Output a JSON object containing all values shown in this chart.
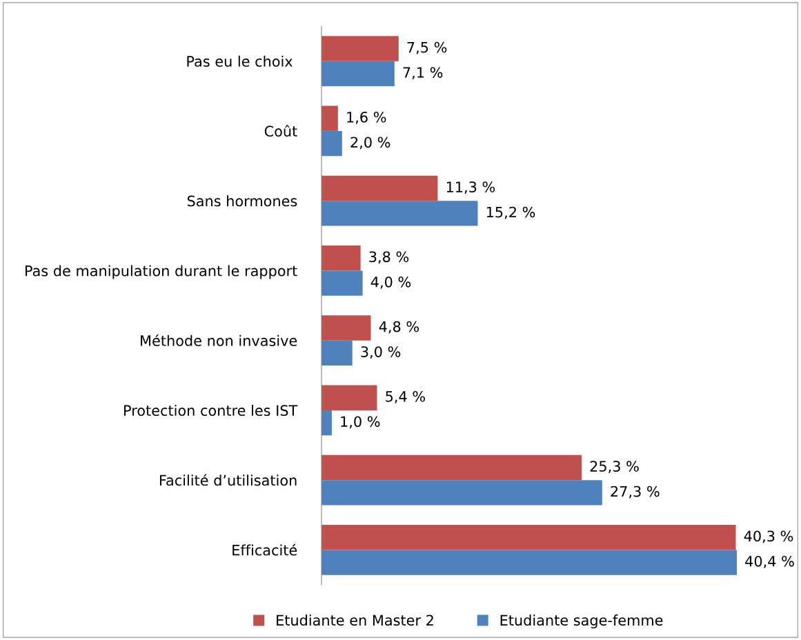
{
  "chart_data": {
    "type": "bar",
    "orientation": "horizontal",
    "categories": [
      "Pas eu le choix ",
      "Coût",
      "Sans hormones",
      "Pas de manipulation durant le rapport",
      "Méthode non invasive",
      "Protection contre les IST",
      "Facilité d’utilisation",
      "Efficacité"
    ],
    "xlim": [
      0,
      40.4
    ],
    "series": [
      {
        "name": "Etudiante en Master 2",
        "color": "#c0504d",
        "values": [
          7.5,
          1.6,
          11.3,
          3.8,
          4.8,
          5.4,
          25.3,
          40.3
        ],
        "value_labels": [
          "7,5 %",
          "1,6 %",
          "11,3 %",
          "3,8 %",
          "4,8 %",
          "5,4 %",
          "25,3 %",
          "40,3 %"
        ]
      },
      {
        "name": "Etudiante sage-femme",
        "color": "#4f81bd",
        "values": [
          7.1,
          2.0,
          15.2,
          4.0,
          3.0,
          1.0,
          27.3,
          40.4
        ],
        "value_labels": [
          "7,1 %",
          "2,0 %",
          "15,2 %",
          "4,0 %",
          "3,0 %",
          "1,0 %",
          "27,3 %",
          "40,4 %"
        ]
      }
    ],
    "legend": "bottom",
    "grid": false,
    "tick_labels": "y"
  }
}
